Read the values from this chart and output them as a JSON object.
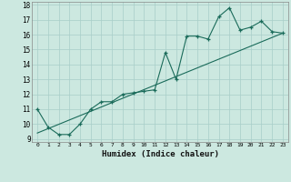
{
  "xlabel": "Humidex (Indice chaleur)",
  "xlim": [
    -0.5,
    23.5
  ],
  "ylim": [
    8.8,
    18.2
  ],
  "yticks": [
    9,
    10,
    11,
    12,
    13,
    14,
    15,
    16,
    17,
    18
  ],
  "xticks": [
    0,
    1,
    2,
    3,
    4,
    5,
    6,
    7,
    8,
    9,
    10,
    11,
    12,
    13,
    14,
    15,
    16,
    17,
    18,
    19,
    20,
    21,
    22,
    23
  ],
  "background_color": "#cce8e0",
  "grid_color": "#a8cec8",
  "line_color": "#1a6b5a",
  "zigzag_x": [
    0,
    1,
    2,
    3,
    4,
    5,
    6,
    7,
    8,
    9,
    10,
    11,
    12,
    13,
    14,
    15,
    16,
    17,
    18,
    19,
    20,
    21,
    22,
    23
  ],
  "zigzag_y": [
    11.0,
    9.8,
    9.3,
    9.3,
    10.0,
    11.0,
    11.5,
    11.5,
    12.0,
    12.1,
    12.2,
    12.3,
    14.8,
    13.0,
    15.9,
    15.9,
    15.7,
    17.2,
    17.8,
    16.3,
    16.5,
    16.9,
    16.2,
    16.1
  ],
  "trend_x": [
    0,
    23
  ],
  "trend_y": [
    9.4,
    16.1
  ]
}
